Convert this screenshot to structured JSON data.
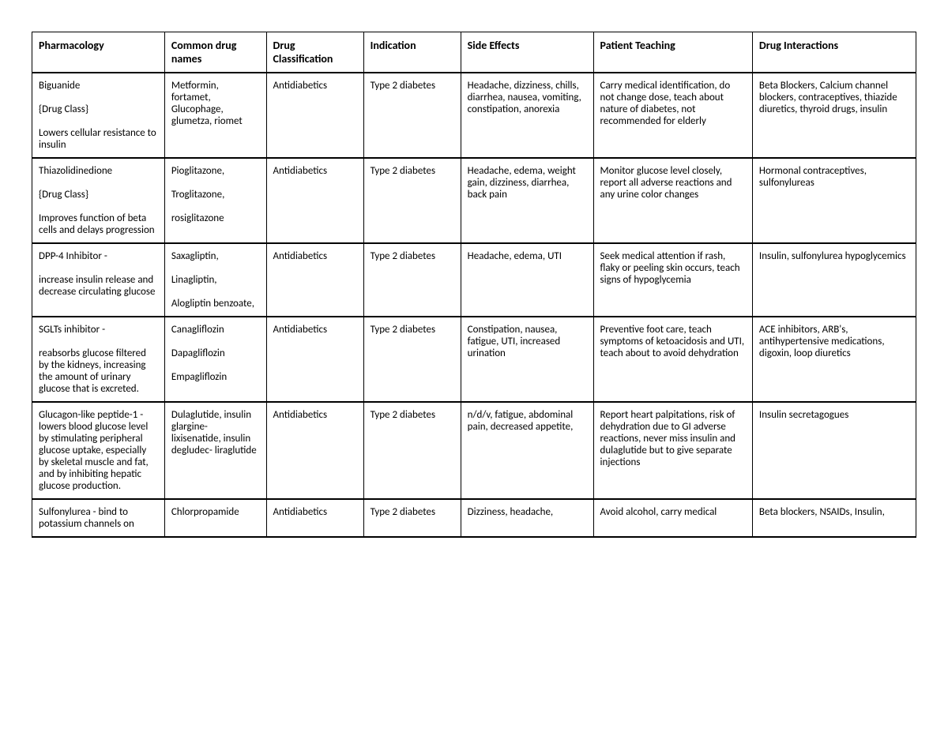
{
  "table": {
    "columns": [
      "Pharmacology",
      "Common drug names",
      "Drug Classification",
      "Indication",
      "Side Effects",
      "Patient Teaching",
      "Drug Interactions"
    ],
    "rows": [
      {
        "pharmacology": "Biguanide\n\n{Drug Class}\n\nLowers cellular resistance to insulin",
        "common_names": "Metformin, fortamet, Glucophage, glumetza, riomet",
        "classification": "Antidiabetics",
        "indication": "Type 2 diabetes",
        "side_effects": "Headache, dizziness, chills, diarrhea, nausea, vomiting, constipation, anorexia",
        "teaching": "Carry medical identification, do not change dose, teach about nature of diabetes, not recommended for elderly",
        "interactions": "Beta Blockers, Calcium channel blockers, contraceptives, thiazide diuretics, thyroid drugs, insulin"
      },
      {
        "pharmacology": "Thiazolidinedione\n\n{Drug Class}\n\nImproves function of beta cells and delays progression",
        "common_names": "Pioglitazone,\n\nTroglitazone,\n\nrosiglitazone",
        "classification": "Antidiabetics",
        "indication": "Type 2 diabetes",
        "side_effects": "Headache, edema, weight gain, dizziness, diarrhea, back pain",
        "teaching": "Monitor glucose level closely, report all adverse reactions and any urine color changes",
        "interactions": "Hormonal contraceptives, sulfonylureas"
      },
      {
        "pharmacology": "DPP-4 Inhibitor -\n\nincrease insulin release and decrease circulating glucose",
        "common_names": "Saxagliptin,\n\nLinagliptin,\n\nAlogliptin benzoate,",
        "classification": "Antidiabetics",
        "indication": "Type 2 diabetes",
        "side_effects": "Headache, edema, UTI",
        "teaching": "Seek medical attention if rash, flaky or peeling skin occurs, teach signs of hypoglycemia",
        "interactions": "Insulin, sulfonylurea hypoglycemics"
      },
      {
        "pharmacology": "SGLTs inhibitor -\n\nreabsorbs glucose filtered by the kidneys, increasing the amount of urinary glucose that is excreted.",
        "common_names": "Canagliflozin\n\nDapagliflozin\n\nEmpagliflozin",
        "classification": "Antidiabetics",
        "indication": "Type 2 diabetes",
        "side_effects": "Constipation, nausea, fatigue, UTI, increased urination",
        "teaching": "Preventive foot care, teach symptoms of ketoacidosis and UTI, teach about to avoid dehydration",
        "interactions": "ACE inhibitors, ARB's, antihypertensive medications, digoxin, loop diuretics"
      },
      {
        "pharmacology": "Glucagon-like peptide-1 -lowers blood glucose level by stimulating peripheral glucose uptake, especially by skeletal muscle and fat, and by inhibiting hepatic glucose production.",
        "common_names": "Dulaglutide, insulin glargine- lixisenatide, insulin degludec- liraglutide",
        "classification": "Antidiabetics",
        "indication": "Type 2 diabetes",
        "side_effects": "n/d/v, fatigue, abdominal pain, decreased appetite,",
        "teaching": "Report heart palpitations, risk of dehydration due to GI adverse reactions, never miss insulin and dulaglutide but to give separate injections",
        "interactions": "Insulin secretagogues"
      },
      {
        "pharmacology": "Sulfonylurea - bind to potassium channels on",
        "common_names": "Chlorpropamide",
        "classification": "Antidiabetics",
        "indication": "Type 2 diabetes",
        "side_effects": "Dizziness, headache,",
        "teaching": "Avoid alcohol, carry medical",
        "interactions": "Beta blockers, NSAIDs, Insulin,"
      }
    ],
    "styling": {
      "border_color": "#000000",
      "background_color": "#ffffff",
      "text_color": "#000000",
      "font_family": "Calibri",
      "header_fontsize": 14,
      "body_fontsize": 13,
      "header_fontweight": "bold",
      "cell_padding": 8,
      "column_widths_pct": [
        15,
        11.5,
        11,
        11,
        15,
        18,
        18.5
      ]
    }
  }
}
